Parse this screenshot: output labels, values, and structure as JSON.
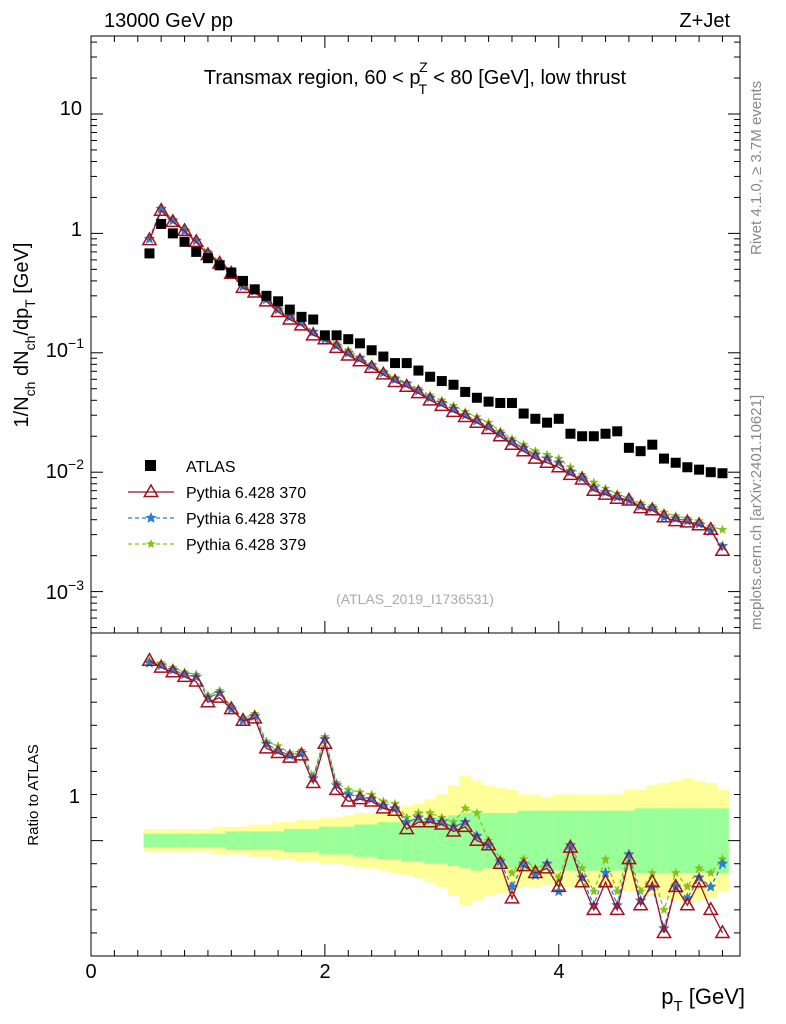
{
  "header": {
    "energy_label": "13000 GeV pp",
    "process_label": "Z+Jet",
    "title_prefix": "Transmax region, 60 < p",
    "title_sup": "Z",
    "title_sub": "T",
    "title_suffix": " < 80 [GeV], low thrust",
    "side_rivet": "Rivet 4.1.0, ≥ 3.7M events",
    "side_mcplots": "mcplots.cern.ch [arXiv:2401.10621]",
    "analysis_id": "(ATLAS_2019_I1736531)"
  },
  "axes": {
    "ylabel_main": "1/N_ch dN_ch/dp_T [GeV]",
    "ylabel_ratio": "Ratio to ATLAS",
    "xlabel": "p_T [GeV]",
    "xticks": [
      "0",
      "2",
      "4"
    ],
    "yticks_main": [
      "10",
      "1",
      "10^-1",
      "10^-2",
      "10^-3"
    ],
    "ytick_ratio": "1"
  },
  "legend": {
    "atlas": "ATLAS",
    "mc1": "Pythia 6.428 370",
    "mc2": "Pythia 6.428 378",
    "mc3": "Pythia 6.428 379"
  },
  "colors": {
    "atlas": "#000000",
    "mc1": "#a01020",
    "mc2": "#2a7fd4",
    "mc3": "#86c21a",
    "band_inner": "#99ff99",
    "band_outer": "#ffff99"
  },
  "chart_data": {
    "type": "scatter",
    "title": "Transmax region, 60 < p_T^Z < 80 [GeV], low thrust",
    "xlabel": "p_T [GeV]",
    "ylabel": "1/N_ch dN_ch/dp_T [GeV]",
    "xlim": [
      0,
      5.55
    ],
    "ylim_log": [
      0.00045,
      45
    ],
    "ratio_ylim": [
      0.5,
      1.9
    ],
    "x": [
      0.5,
      0.6,
      0.7,
      0.8,
      0.9,
      1.0,
      1.1,
      1.2,
      1.3,
      1.4,
      1.5,
      1.6,
      1.7,
      1.8,
      1.9,
      2.0,
      2.1,
      2.2,
      2.3,
      2.4,
      2.5,
      2.6,
      2.7,
      2.8,
      2.9,
      3.0,
      3.1,
      3.2,
      3.3,
      3.4,
      3.5,
      3.6,
      3.7,
      3.8,
      3.9,
      4.0,
      4.1,
      4.2,
      4.3,
      4.4,
      4.5,
      4.6,
      4.7,
      4.8,
      4.9,
      5.0,
      5.1,
      5.2,
      5.3,
      5.4
    ],
    "atlas": [
      0.68,
      1.2,
      1.0,
      0.85,
      0.7,
      0.62,
      0.54,
      0.47,
      0.4,
      0.34,
      0.3,
      0.27,
      0.23,
      0.2,
      0.19,
      0.14,
      0.14,
      0.13,
      0.12,
      0.105,
      0.093,
      0.082,
      0.082,
      0.071,
      0.063,
      0.058,
      0.054,
      0.047,
      0.042,
      0.039,
      0.038,
      0.038,
      0.031,
      0.028,
      0.026,
      0.028,
      0.021,
      0.02,
      0.02,
      0.021,
      0.022,
      0.016,
      0.015,
      0.017,
      0.013,
      0.012,
      0.011,
      0.0105,
      0.01,
      0.0098
    ],
    "series": [
      {
        "name": "Pythia 6.428 370",
        "values": [
          0.88,
          1.55,
          1.25,
          1.05,
          0.85,
          0.66,
          0.56,
          0.46,
          0.35,
          0.32,
          0.27,
          0.22,
          0.19,
          0.17,
          0.14,
          0.13,
          0.11,
          0.095,
          0.085,
          0.075,
          0.066,
          0.057,
          0.052,
          0.046,
          0.04,
          0.036,
          0.032,
          0.029,
          0.026,
          0.023,
          0.02,
          0.017,
          0.015,
          0.013,
          0.012,
          0.011,
          0.0095,
          0.0087,
          0.007,
          0.0065,
          0.006,
          0.0058,
          0.005,
          0.0048,
          0.0042,
          0.0039,
          0.0038,
          0.0036,
          0.0033,
          0.0022
        ],
        "ratio": [
          1.78,
          1.75,
          1.73,
          1.71,
          1.69,
          1.6,
          1.62,
          1.57,
          1.52,
          1.53,
          1.4,
          1.38,
          1.36,
          1.37,
          1.25,
          1.42,
          1.22,
          1.17,
          1.18,
          1.17,
          1.14,
          1.13,
          1.05,
          1.08,
          1.08,
          1.07,
          1.04,
          1.06,
          1.0,
          0.98,
          0.9,
          0.75,
          0.89,
          0.86,
          0.88,
          0.8,
          0.97,
          0.82,
          0.7,
          0.82,
          0.7,
          0.92,
          0.72,
          0.82,
          0.6,
          0.8,
          0.72,
          0.82,
          0.7,
          0.6
        ]
      },
      {
        "name": "Pythia 6.428 378",
        "values": [
          0.9,
          1.6,
          1.28,
          1.05,
          0.87,
          0.68,
          0.57,
          0.47,
          0.36,
          0.33,
          0.28,
          0.23,
          0.2,
          0.18,
          0.15,
          0.13,
          0.115,
          0.1,
          0.09,
          0.078,
          0.068,
          0.06,
          0.055,
          0.048,
          0.042,
          0.038,
          0.034,
          0.03,
          0.027,
          0.024,
          0.021,
          0.018,
          0.016,
          0.014,
          0.013,
          0.012,
          0.01,
          0.009,
          0.0074,
          0.0068,
          0.0062,
          0.0058,
          0.0052,
          0.005,
          0.0042,
          0.0041,
          0.0039,
          0.0037,
          0.0032,
          0.0024
        ],
        "ratio": [
          1.77,
          1.76,
          1.74,
          1.72,
          1.71,
          1.62,
          1.64,
          1.57,
          1.52,
          1.54,
          1.42,
          1.39,
          1.37,
          1.38,
          1.27,
          1.44,
          1.24,
          1.2,
          1.19,
          1.18,
          1.15,
          1.14,
          1.08,
          1.1,
          1.09,
          1.08,
          1.06,
          1.08,
          1.02,
          0.98,
          0.91,
          0.8,
          0.9,
          0.85,
          0.9,
          0.78,
          0.98,
          0.84,
          0.72,
          0.86,
          0.72,
          0.94,
          0.74,
          0.8,
          0.62,
          0.8,
          0.75,
          0.84,
          0.8,
          0.9
        ]
      },
      {
        "name": "Pythia 6.428 379",
        "values": [
          0.9,
          1.62,
          1.3,
          1.07,
          0.88,
          0.7,
          0.58,
          0.48,
          0.37,
          0.34,
          0.29,
          0.24,
          0.21,
          0.18,
          0.15,
          0.135,
          0.12,
          0.105,
          0.092,
          0.08,
          0.07,
          0.062,
          0.056,
          0.05,
          0.044,
          0.04,
          0.036,
          0.032,
          0.029,
          0.026,
          0.022,
          0.019,
          0.017,
          0.015,
          0.014,
          0.013,
          0.011,
          0.0095,
          0.0082,
          0.0073,
          0.0066,
          0.006,
          0.0055,
          0.0052,
          0.0046,
          0.0043,
          0.0041,
          0.0039,
          0.0035,
          0.0033
        ],
        "ratio": [
          1.78,
          1.77,
          1.75,
          1.73,
          1.72,
          1.63,
          1.65,
          1.58,
          1.53,
          1.55,
          1.43,
          1.41,
          1.38,
          1.39,
          1.28,
          1.45,
          1.25,
          1.22,
          1.21,
          1.2,
          1.17,
          1.16,
          1.1,
          1.12,
          1.12,
          1.1,
          1.08,
          1.14,
          1.12,
          1.0,
          0.92,
          0.86,
          0.92,
          0.88,
          0.9,
          0.84,
          0.98,
          0.88,
          0.78,
          0.92,
          0.78,
          0.94,
          0.78,
          0.86,
          0.7,
          0.86,
          0.8,
          0.88,
          0.86,
          0.92
        ]
      }
    ],
    "band_inner_halfwidth": [
      0.03,
      0.03,
      0.03,
      0.03,
      0.03,
      0.03,
      0.03,
      0.04,
      0.04,
      0.04,
      0.04,
      0.04,
      0.05,
      0.05,
      0.05,
      0.06,
      0.06,
      0.06,
      0.07,
      0.07,
      0.08,
      0.08,
      0.09,
      0.09,
      0.1,
      0.1,
      0.11,
      0.12,
      0.13,
      0.12,
      0.12,
      0.12,
      0.13,
      0.13,
      0.13,
      0.13,
      0.13,
      0.13,
      0.13,
      0.13,
      0.13,
      0.13,
      0.14,
      0.14,
      0.14,
      0.14,
      0.14,
      0.14,
      0.14,
      0.14
    ],
    "band_outer_halfwidth": [
      0.05,
      0.05,
      0.05,
      0.05,
      0.05,
      0.05,
      0.06,
      0.06,
      0.06,
      0.07,
      0.07,
      0.08,
      0.08,
      0.09,
      0.09,
      0.1,
      0.1,
      0.11,
      0.12,
      0.12,
      0.13,
      0.14,
      0.15,
      0.16,
      0.18,
      0.2,
      0.24,
      0.28,
      0.26,
      0.24,
      0.23,
      0.22,
      0.2,
      0.2,
      0.19,
      0.2,
      0.2,
      0.2,
      0.2,
      0.2,
      0.2,
      0.22,
      0.22,
      0.24,
      0.25,
      0.26,
      0.27,
      0.26,
      0.25,
      0.22
    ]
  }
}
